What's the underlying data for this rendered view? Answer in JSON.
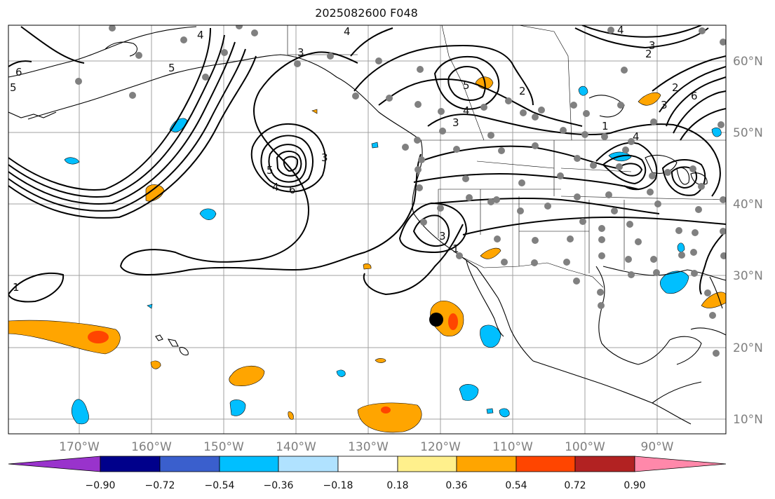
{
  "title": "2025082600 F048",
  "map": {
    "lon_labels": [
      "170°W",
      "160°W",
      "150°W",
      "140°W",
      "130°W",
      "120°W",
      "110°W",
      "100°W",
      "90°W"
    ],
    "lat_labels": [
      "60°N",
      "50°N",
      "40°N",
      "30°N",
      "20°N",
      "10°N"
    ],
    "contour_labels": [
      "1",
      "2",
      "3",
      "4",
      "5",
      "6"
    ],
    "colors": {
      "coast": "#000000",
      "contour": "#000000",
      "grid": "#a0a0a0",
      "station": "#808080",
      "marker": "#000000"
    }
  },
  "colorbar": {
    "ticks": [
      "−0.90",
      "−0.72",
      "−0.54",
      "−0.36",
      "−0.18",
      "0.18",
      "0.36",
      "0.54",
      "0.72",
      "0.90"
    ],
    "colors": [
      "#9933cc",
      "#00008b",
      "#3a5fcd",
      "#00bfff",
      "#b0e2ff",
      "#ffffff",
      "#fff08c",
      "#ffa500",
      "#ff4500",
      "#b22222",
      "#ff88aa"
    ]
  }
}
